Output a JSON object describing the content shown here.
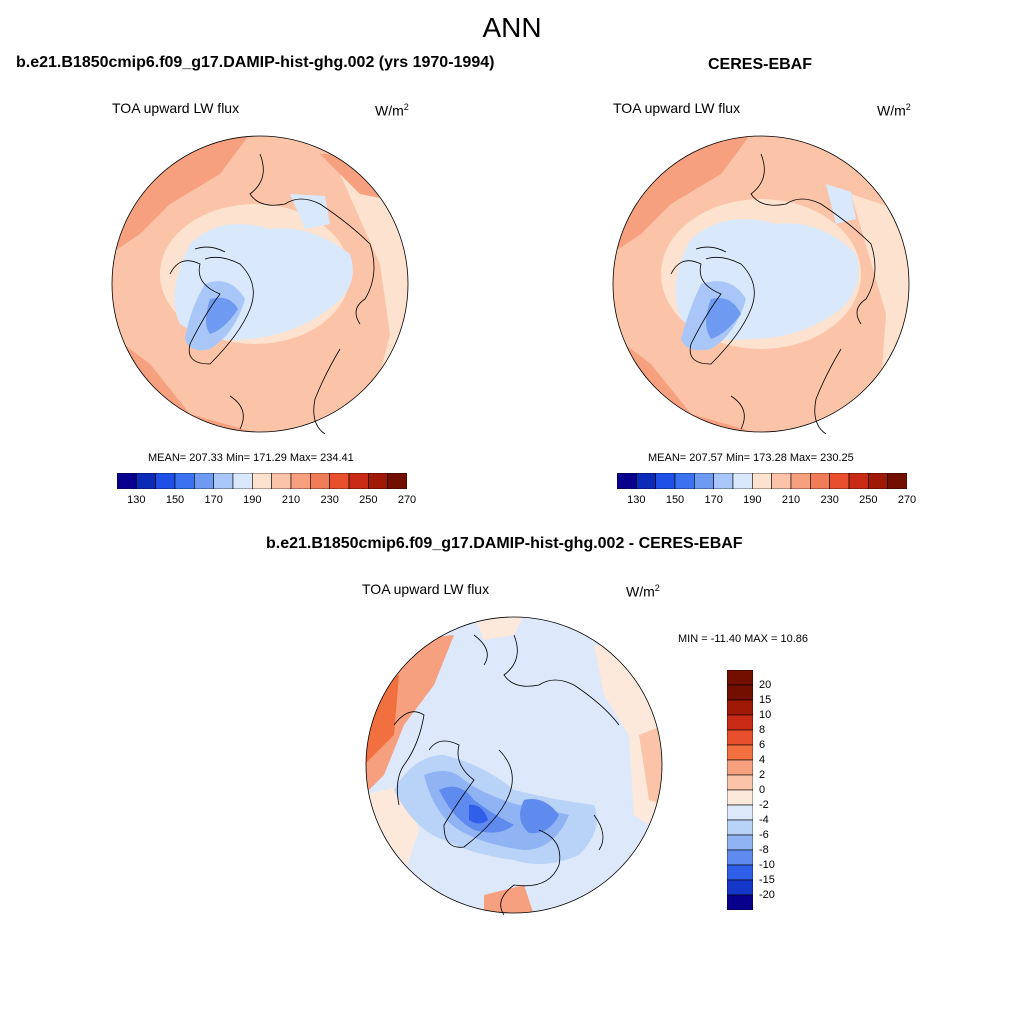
{
  "main_title": "ANN",
  "panels": [
    {
      "title": "b.e21.B1850cmip6.f09_g17.DAMIP-hist-ghg.002 (yrs 1970-1994)",
      "variable": "TOA upward LW flux",
      "units": "W/m",
      "units_sup": "2",
      "stats": "MEAN= 207.33  Min= 171.29  Max= 234.41",
      "colorbar_labels": [
        "130",
        "150",
        "170",
        "190",
        "210",
        "230",
        "250",
        "270"
      ]
    },
    {
      "title": "CERES-EBAF",
      "variable": "TOA upward LW flux",
      "units": "W/m",
      "units_sup": "2",
      "stats": "MEAN= 207.57  Min= 173.28  Max= 230.25",
      "colorbar_labels": [
        "130",
        "150",
        "170",
        "190",
        "210",
        "230",
        "250",
        "270"
      ]
    },
    {
      "title": "b.e21.B1850cmip6.f09_g17.DAMIP-hist-ghg.002 - CERES-EBAF",
      "variable": "TOA upward LW flux",
      "units": "W/m",
      "units_sup": "2",
      "stats": "MIN = -11.40 MAX =  10.86",
      "colorbar_labels": [
        "20",
        "15",
        "10",
        "8",
        "6",
        "4",
        "2",
        "0",
        "-2",
        "-4",
        "-6",
        "-8",
        "-10",
        "-15",
        "-20"
      ]
    }
  ],
  "colors": {
    "abs_scale": [
      "#08008c",
      "#0b2ab8",
      "#1e4fe6",
      "#3a72f0",
      "#6e9af2",
      "#a8c6f7",
      "#d9e8fb",
      "#fde2cf",
      "#fbc4a8",
      "#f6a07f",
      "#f07c58",
      "#e84f2d",
      "#c92a15",
      "#a01806",
      "#730f00"
    ],
    "diff_scale": [
      "#730f00",
      "#a01806",
      "#c92a15",
      "#e84f2d",
      "#f2703f",
      "#f6a07f",
      "#fbc4a8",
      "#fde9db",
      "#dde9fb",
      "#b9d2f8",
      "#8fb3f3",
      "#5f8bef",
      "#2f5fe8",
      "#1437c9",
      "#08008c"
    ]
  }
}
